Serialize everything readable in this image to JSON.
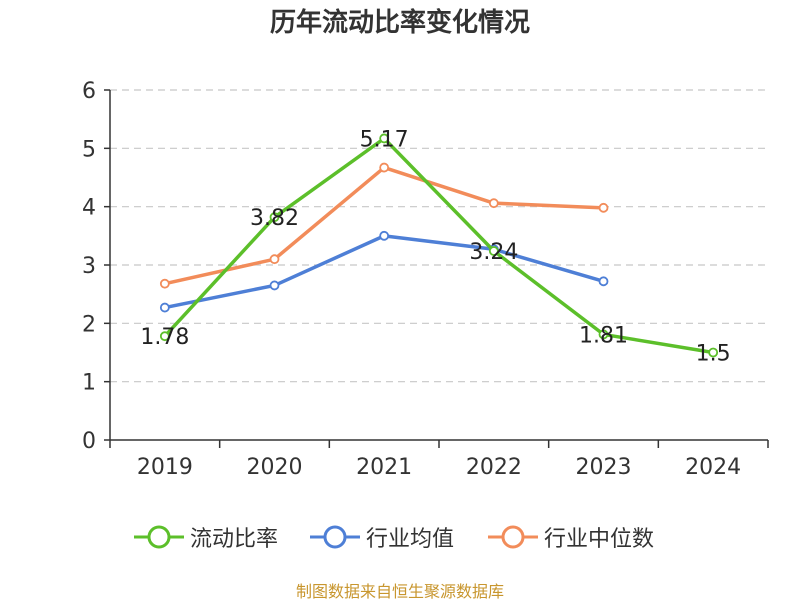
{
  "colors": {
    "series0": "#5cbf2a",
    "series1": "#4e7fd6",
    "series2": "#f28c5a",
    "footer": "#c8962e"
  },
  "footer": "制图数据来自恒生聚源数据库",
  "chart_data": {
    "type": "line",
    "title": "历年流动比率变化情况",
    "categories": [
      "2019",
      "2020",
      "2021",
      "2022",
      "2023",
      "2024"
    ],
    "ylim": [
      0,
      6
    ],
    "yticks": [
      0,
      1,
      2,
      3,
      4,
      5,
      6
    ],
    "grid": true,
    "legend_position": "bottom",
    "series": [
      {
        "name": "流动比率",
        "values": [
          1.78,
          3.82,
          5.17,
          3.24,
          1.81,
          1.5
        ],
        "labels": [
          "1.78",
          "3.82",
          "5.17",
          "3.24",
          "1.81",
          "1.5"
        ]
      },
      {
        "name": "行业均值",
        "values": [
          2.27,
          2.65,
          3.5,
          3.27,
          2.72,
          null
        ]
      },
      {
        "name": "行业中位数",
        "values": [
          2.68,
          3.1,
          4.67,
          4.06,
          3.98,
          null
        ]
      }
    ]
  }
}
